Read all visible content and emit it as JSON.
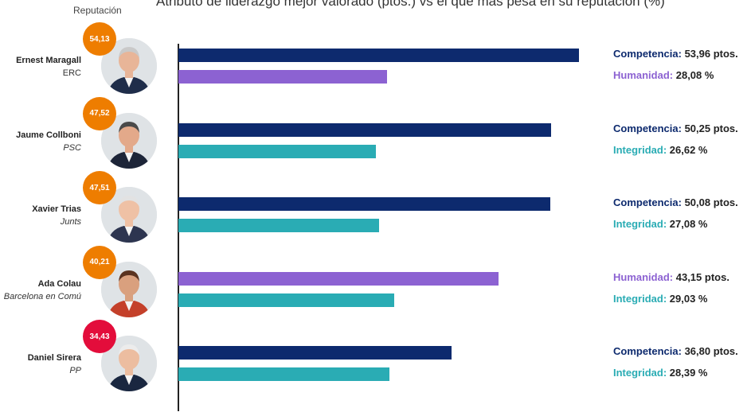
{
  "header": {
    "title": "Atributo de liderazgo mejor valorado (ptos.) vs el que más pesa en su reputación (%)",
    "reputation_label": "Reputación"
  },
  "colors": {
    "Competencia": "#0d2a6e",
    "Humanidad": "#8c62d2",
    "Integridad": "#2aacb4",
    "badge_orange": "#ee7d00",
    "badge_red": "#e30d3b"
  },
  "chart_data": {
    "type": "bar",
    "orientation": "horizontal",
    "title": "Atributo de liderazgo mejor valorado (ptos.) vs el que más pesa en su reputación (%)",
    "xlim": [
      0,
      60
    ],
    "grid": false,
    "legend": "none",
    "candidates": [
      {
        "name": "Ernest Maragall",
        "party": "ERC",
        "party_italic": false,
        "reputation": "54,13",
        "badge_color": "orange",
        "bars": [
          {
            "attribute": "Competencia",
            "value": 53.96,
            "label": "Competencia:",
            "value_text": "53,96 ptos."
          },
          {
            "attribute": "Humanidad",
            "value": 28.08,
            "label": "Humanidad:",
            "value_text": "28,08 %"
          }
        ]
      },
      {
        "name": "Jaume Collboni",
        "party": "PSC",
        "party_italic": true,
        "reputation": "47,52",
        "badge_color": "orange",
        "bars": [
          {
            "attribute": "Competencia",
            "value": 50.25,
            "label": "Competencia:",
            "value_text": "50,25 ptos."
          },
          {
            "attribute": "Integridad",
            "value": 26.62,
            "label": "Integridad:",
            "value_text": "26,62 %"
          }
        ]
      },
      {
        "name": "Xavier Trias",
        "party": "Junts",
        "party_italic": true,
        "reputation": "47,51",
        "badge_color": "orange",
        "bars": [
          {
            "attribute": "Competencia",
            "value": 50.08,
            "label": "Competencia:",
            "value_text": "50,08 ptos."
          },
          {
            "attribute": "Integridad",
            "value": 27.08,
            "label": "Integridad:",
            "value_text": "27,08 %"
          }
        ]
      },
      {
        "name": "Ada Colau",
        "party": "Barcelona en Comú",
        "party_italic": true,
        "reputation": "40,21",
        "badge_color": "orange",
        "bars": [
          {
            "attribute": "Humanidad",
            "value": 43.15,
            "label": "Humanidad:",
            "value_text": "43,15 ptos."
          },
          {
            "attribute": "Integridad",
            "value": 29.03,
            "label": "Integridad:",
            "value_text": "29,03 %"
          }
        ]
      },
      {
        "name": "Daniel Sirera",
        "party": "PP",
        "party_italic": true,
        "reputation": "34,43",
        "badge_color": "red",
        "bars": [
          {
            "attribute": "Competencia",
            "value": 36.8,
            "label": "Competencia:",
            "value_text": "36,80 ptos."
          },
          {
            "attribute": "Integridad",
            "value": 28.39,
            "label": "Integridad:",
            "value_text": "28,39 %"
          }
        ]
      }
    ]
  }
}
